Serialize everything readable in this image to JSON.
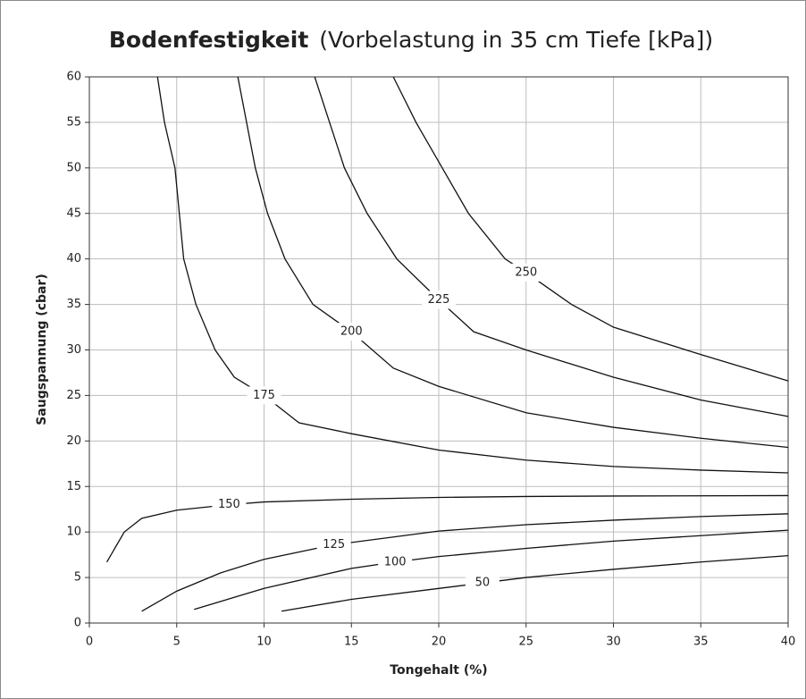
{
  "chart_data": {
    "type": "line",
    "title": "Bodenfestigkeit",
    "subtitle": "(Vorbelastung in 35 cm Tiefe [kPa])",
    "x_label": "Tongehalt (%)",
    "y_label": "Saugspannung (cbar)",
    "xlim": [
      0,
      40
    ],
    "xticks": [
      0,
      5,
      10,
      15,
      20,
      25,
      30,
      35,
      40
    ],
    "ylim": [
      0,
      60
    ],
    "yticks": [
      0,
      5,
      10,
      15,
      20,
      25,
      30,
      35,
      40,
      45,
      50,
      55,
      60
    ],
    "grid": true,
    "series": [
      {
        "name": "50",
        "color": "#111111",
        "x": [
          11,
          15,
          20,
          22.5,
          25,
          30,
          35,
          40
        ],
        "values": [
          1.3,
          2.6,
          3.8,
          4.4,
          5,
          5.9,
          6.7,
          7.4
        ]
      },
      {
        "name": "100",
        "color": "#111111",
        "x": [
          6,
          10,
          15,
          17.5,
          20,
          25,
          30,
          35,
          40
        ],
        "values": [
          1.5,
          3.8,
          6,
          6.7,
          7.3,
          8.2,
          9,
          9.6,
          10.2
        ]
      },
      {
        "name": "125",
        "color": "#111111",
        "x": [
          3,
          5,
          7.5,
          10,
          14,
          20,
          25,
          30,
          35,
          40
        ],
        "values": [
          1.3,
          3.5,
          5.5,
          7,
          8.6,
          10.1,
          10.8,
          11.3,
          11.7,
          12
        ]
      },
      {
        "name": "150",
        "color": "#111111",
        "x": [
          1,
          2,
          3,
          5,
          8,
          10,
          15,
          20,
          25,
          30,
          40
        ],
        "values": [
          6.7,
          10,
          11.5,
          12.4,
          13,
          13.3,
          13.6,
          13.8,
          13.9,
          13.95,
          14
        ]
      },
      {
        "name": "175",
        "color": "#111111",
        "x": [
          3.9,
          4.3,
          4.9,
          5.4,
          6.1,
          7.2,
          8.3,
          10,
          12,
          15,
          20,
          25,
          30,
          35,
          40
        ],
        "values": [
          60,
          55,
          50,
          40,
          35,
          30,
          27,
          25,
          22,
          20.8,
          19,
          17.9,
          17.2,
          16.8,
          16.5
        ]
      },
      {
        "name": "200",
        "color": "#111111",
        "x": [
          8.5,
          9.5,
          10.2,
          11.2,
          12.8,
          15,
          17.4,
          20,
          25,
          30,
          35,
          40
        ],
        "values": [
          60,
          50,
          45,
          40,
          35,
          32,
          28,
          26,
          23.1,
          21.5,
          20.3,
          19.3
        ]
      },
      {
        "name": "225",
        "color": "#111111",
        "x": [
          12.9,
          14.6,
          15.9,
          17.6,
          20,
          22,
          25,
          30,
          35,
          40
        ],
        "values": [
          60,
          50,
          45,
          40,
          35.5,
          32,
          30,
          27,
          24.5,
          22.7
        ]
      },
      {
        "name": "250",
        "color": "#111111",
        "x": [
          17.4,
          18.7,
          20.2,
          21.7,
          23.8,
          25,
          27.6,
          30,
          35,
          40
        ],
        "values": [
          60,
          55,
          50,
          45,
          40,
          38.5,
          35,
          32.5,
          29.5,
          26.6
        ]
      }
    ]
  }
}
